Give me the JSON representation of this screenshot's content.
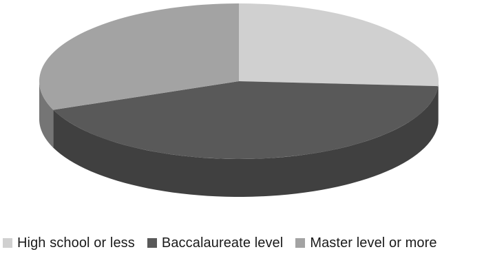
{
  "chart_data": {
    "type": "pie",
    "title": "",
    "style": "3d",
    "legend_position": "bottom",
    "categories": [
      "High school or less",
      "Baccalaureate level",
      "Master level or more"
    ],
    "values": [
      26,
      43,
      31
    ],
    "colors": [
      "#d0d0d0",
      "#595959",
      "#a3a3a3"
    ]
  },
  "legend": {
    "items": [
      {
        "label": "High school or less",
        "color": "#d0d0d0"
      },
      {
        "label": "Baccalaureate level",
        "color": "#595959"
      },
      {
        "label": "Master level or more",
        "color": "#a3a3a3"
      }
    ]
  }
}
